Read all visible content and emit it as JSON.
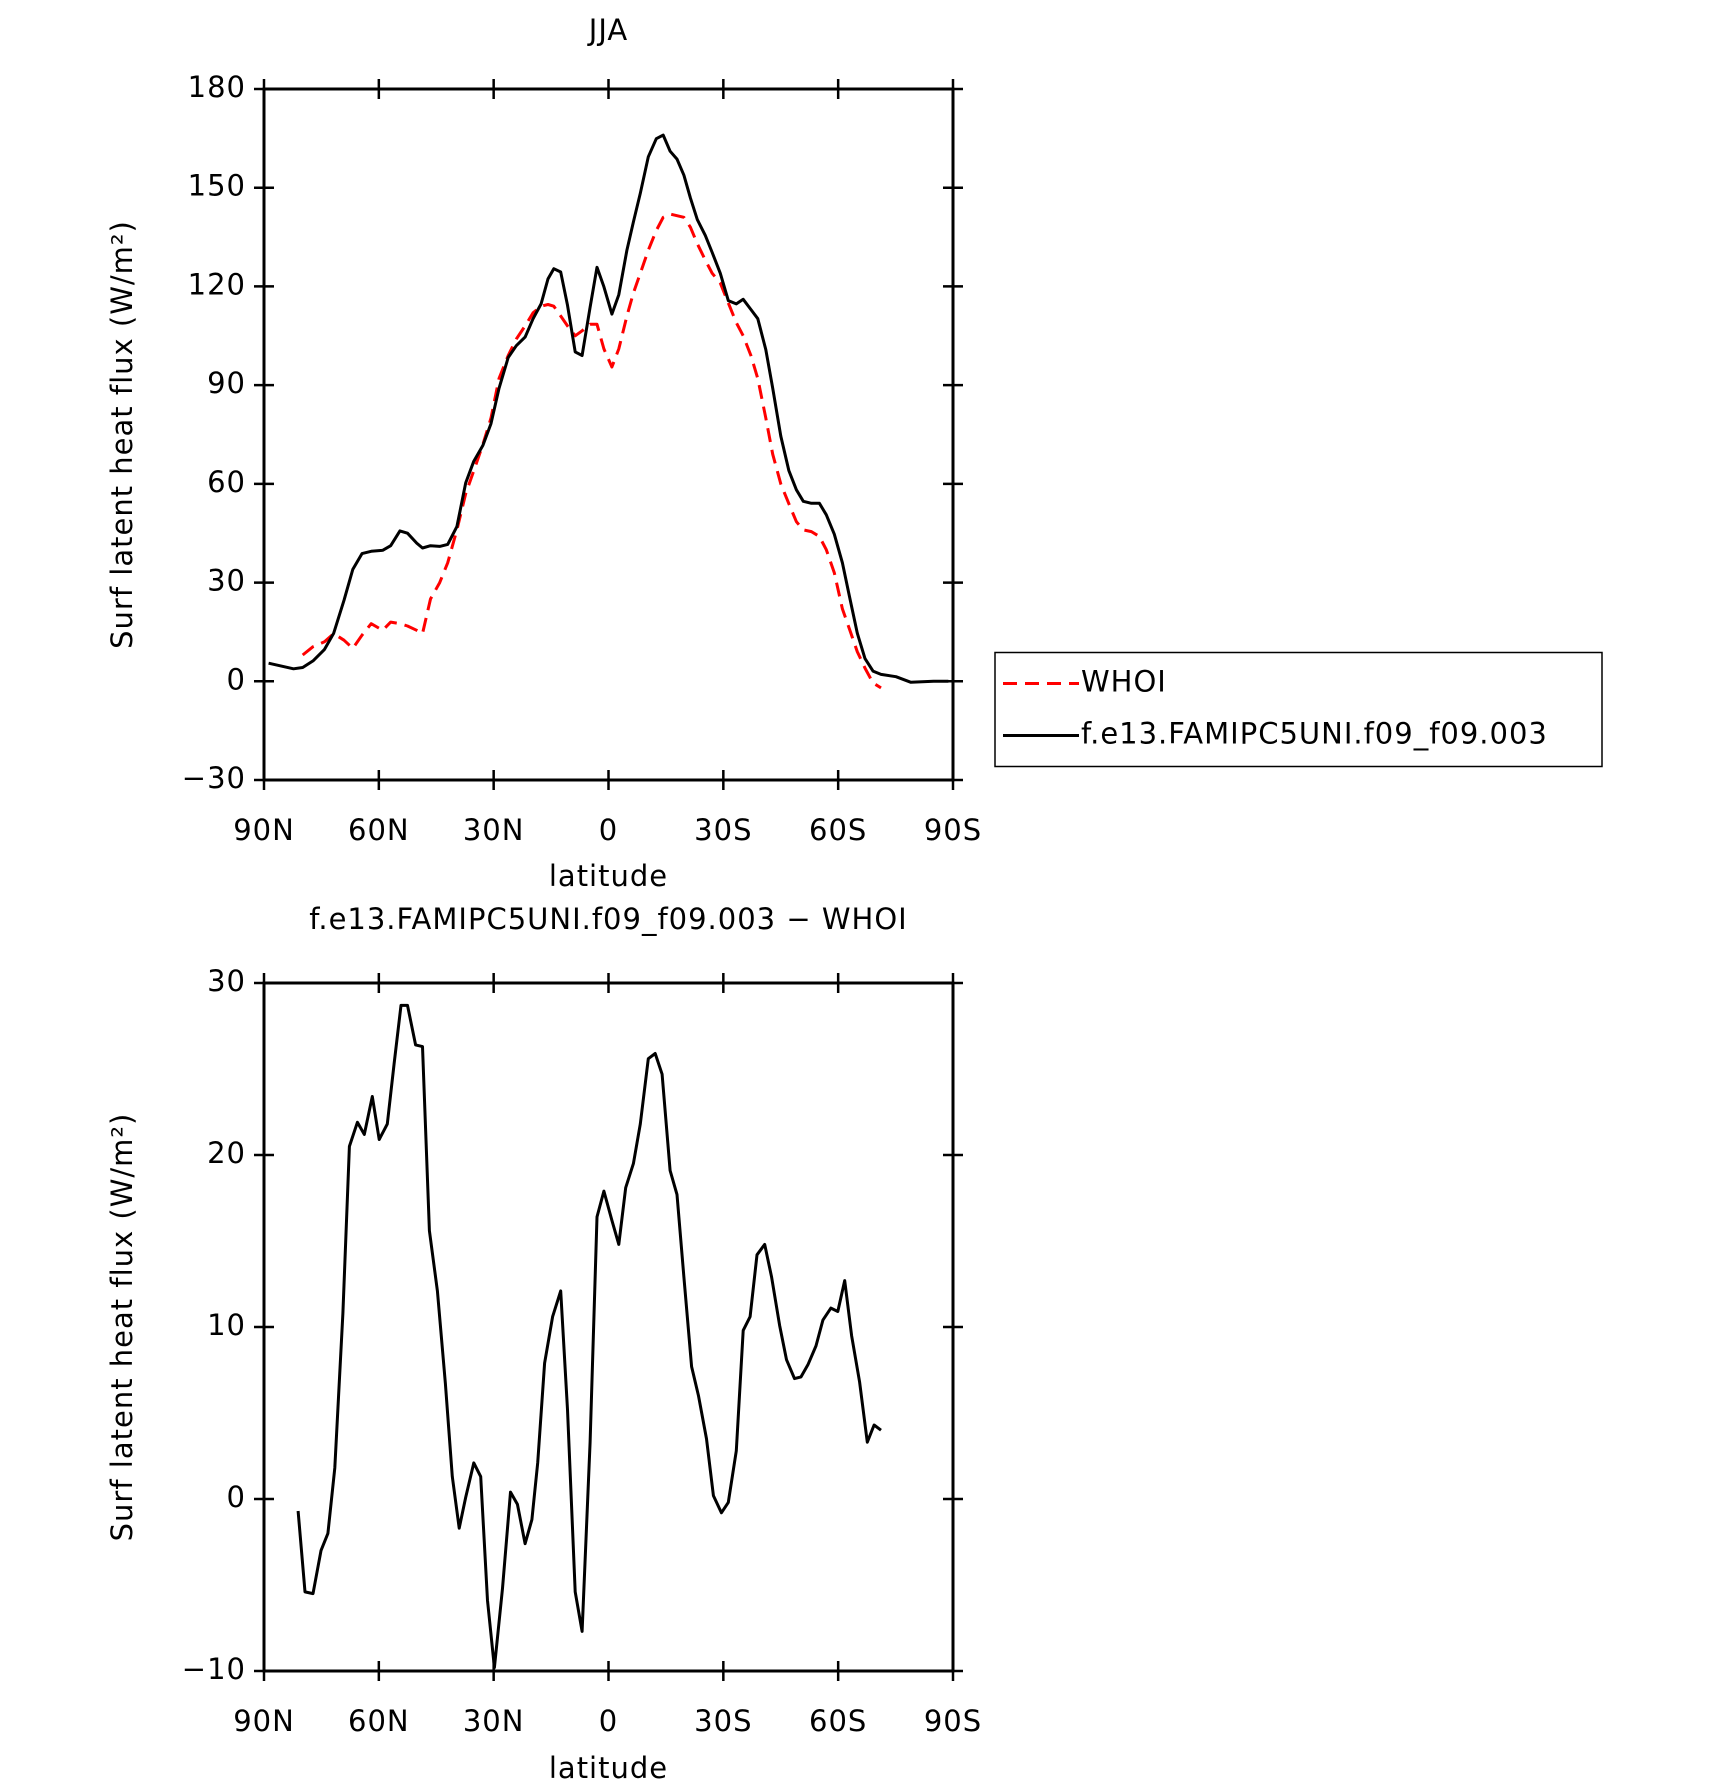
{
  "chart_data": [
    {
      "type": "line",
      "title": "JJA",
      "x_label": "latitude",
      "y_label": "Surf latent heat flux (W/m²)",
      "xlim": [
        90,
        -90
      ],
      "xticks": [
        {
          "value": 90,
          "label": "90N"
        },
        {
          "value": 60,
          "label": "60N"
        },
        {
          "value": 30,
          "label": "30N"
        },
        0,
        {
          "value": -30,
          "label": "30S"
        },
        {
          "value": -60,
          "label": "60S"
        },
        {
          "value": -90,
          "label": "90S"
        }
      ],
      "ylim": [
        -30,
        180
      ],
      "yticks": [
        {
          "value": -30,
          "label": "−30"
        },
        0,
        30,
        60,
        90,
        120,
        150,
        180
      ],
      "legend": "outside-right",
      "x": [
        88.8,
        82.3,
        79.9,
        77.2,
        74.2,
        71.8,
        69.1,
        66.8,
        64.4,
        62.0,
        59.0,
        56.9,
        54.5,
        52.5,
        50.1,
        48.6,
        46.5,
        44.1,
        42.0,
        39.6,
        37.3,
        35.2,
        32.8,
        30.7,
        28.6,
        26.2,
        24.1,
        21.8,
        19.7,
        17.6,
        15.8,
        14.3,
        12.5,
        10.7,
        8.7,
        6.9,
        4.8,
        3.0,
        1.2,
        -0.9,
        -2.7,
        -4.8,
        -6.5,
        -8.3,
        -10.4,
        -12.5,
        -14.3,
        -16.1,
        -17.9,
        -19.7,
        -21.4,
        -23.2,
        -25.3,
        -27.1,
        -29.2,
        -31.3,
        -33.4,
        -35.2,
        -37.2,
        -39.0,
        -41.1,
        -42.9,
        -45.0,
        -47.1,
        -49.1,
        -50.9,
        -53.0,
        -55.1,
        -56.9,
        -59.0,
        -61.1,
        -62.9,
        -65.0,
        -67.0,
        -69.1,
        -71.2,
        -75.1,
        -79.0,
        -84.9,
        -88.8
      ],
      "series": [
        {
          "name": "WHOI",
          "color": "#ff0000",
          "dash": true,
          "values": [
            null,
            null,
            8,
            10.5,
            12,
            14.5,
            12.5,
            10,
            14,
            17.5,
            15.5,
            18,
            17.5,
            16.8,
            15.5,
            14.5,
            25,
            30,
            36,
            46,
            57,
            64,
            72,
            80,
            92,
            99,
            104,
            108,
            112,
            114,
            114.5,
            114,
            111,
            108,
            105,
            106.5,
            108.5,
            108.5,
            101,
            95.5,
            101,
            111,
            118,
            124,
            131,
            137,
            141,
            142,
            141.5,
            141,
            138,
            133,
            128,
            124,
            121,
            115,
            109,
            105,
            99,
            92,
            80,
            69,
            60,
            54,
            48.5,
            46,
            45.5,
            44,
            40,
            33,
            22,
            16,
            9,
            4,
            -0.5,
            -2,
            null,
            null,
            null,
            null
          ]
        },
        {
          "name": "f.e13.FAMIPC5UNI.f09_f09.003",
          "color": "#000000",
          "dash": false,
          "values": [
            5.5,
            3.8,
            4.2,
            6.2,
            9.7,
            14.6,
            24.6,
            34,
            38.8,
            39.5,
            39.8,
            41.2,
            45.7,
            45,
            42,
            40.5,
            41.2,
            41,
            41.6,
            47,
            60.3,
            66.9,
            71.7,
            78.3,
            89,
            98.4,
            102,
            104.6,
            110.2,
            114.7,
            122.3,
            125.4,
            124.4,
            114.3,
            100.1,
            99,
            113.7,
            125.8,
            119.9,
            111.6,
            117.5,
            131,
            139.6,
            148.3,
            159.4,
            164.9,
            166,
            161.1,
            158.7,
            153.8,
            146.9,
            140.3,
            135.5,
            130.3,
            124,
            115.7,
            114.7,
            116.1,
            113,
            110.2,
            100.8,
            89.1,
            74.5,
            64.1,
            58.2,
            54.7,
            54.1,
            54.1,
            50.6,
            44.7,
            36,
            26,
            14.6,
            6.9,
            3.1,
            2.1,
            1.4,
            -0.3,
            0,
            0
          ]
        }
      ]
    },
    {
      "type": "line",
      "title": "f.e13.FAMIPC5UNI.f09_f09.003 − WHOI",
      "x_label": "latitude",
      "y_label": "Surf latent heat flux (W/m²)",
      "xlim": [
        90,
        -90
      ],
      "xticks": [
        {
          "value": 90,
          "label": "90N"
        },
        {
          "value": 60,
          "label": "60N"
        },
        {
          "value": 30,
          "label": "30N"
        },
        0,
        {
          "value": -30,
          "label": "30S"
        },
        {
          "value": -60,
          "label": "60S"
        },
        {
          "value": -90,
          "label": "90S"
        }
      ],
      "ylim": [
        -10,
        30
      ],
      "yticks": [
        {
          "value": -10,
          "label": "−10"
        },
        0,
        10,
        20,
        30
      ],
      "x": [
        81.1,
        79.3,
        77.2,
        75.1,
        73.3,
        71.5,
        69.4,
        67.7,
        65.6,
        63.8,
        61.7,
        59.9,
        57.8,
        56.0,
        54.2,
        52.5,
        50.4,
        48.6,
        46.8,
        44.7,
        42.6,
        40.8,
        39.0,
        37.3,
        35.2,
        33.4,
        31.6,
        29.8,
        27.7,
        25.6,
        23.8,
        21.8,
        20.0,
        18.5,
        16.7,
        14.6,
        12.5,
        10.7,
        8.7,
        6.9,
        4.8,
        3.0,
        1.2,
        -0.9,
        -2.7,
        -4.5,
        -6.5,
        -8.3,
        -10.4,
        -12.2,
        -14.0,
        -16.1,
        -17.9,
        -19.7,
        -21.7,
        -23.5,
        -25.6,
        -27.4,
        -29.5,
        -31.3,
        -33.4,
        -35.2,
        -37.0,
        -38.8,
        -40.8,
        -42.6,
        -44.7,
        -46.5,
        -48.6,
        -50.3,
        -52.1,
        -54.2,
        -56.0,
        -58.1,
        -59.9,
        -61.7,
        -63.5,
        -65.6,
        -67.6,
        -69.4,
        -71.2
      ],
      "series": [
        {
          "color": "#000000",
          "dash": false,
          "values": [
            -0.7,
            -5.4,
            -5.5,
            -3,
            -2,
            1.8,
            10.8,
            20.5,
            21.9,
            21.2,
            23.4,
            20.9,
            21.8,
            25.3,
            28.7,
            28.7,
            26.4,
            26.3,
            15.6,
            12.1,
            6.7,
            1.3,
            -1.7,
            0.1,
            2.1,
            1.3,
            -5.9,
            -9.8,
            -5.2,
            0.4,
            -0.3,
            -2.6,
            -1.2,
            2.1,
            7.9,
            10.6,
            12.1,
            5.2,
            -5.4,
            -7.7,
            3.3,
            16.4,
            17.9,
            16.2,
            14.8,
            18.1,
            19.5,
            21.8,
            25.6,
            25.9,
            24.7,
            19.1,
            17.7,
            12.9,
            7.7,
            6,
            3.5,
            0.2,
            -0.8,
            -0.2,
            2.8,
            9.8,
            10.6,
            14.2,
            14.8,
            12.9,
            10.1,
            8.1,
            7,
            7.1,
            7.8,
            8.9,
            10.4,
            11.1,
            10.9,
            12.7,
            9.5,
            6.8,
            3.3,
            4.3,
            4
          ]
        }
      ]
    }
  ]
}
